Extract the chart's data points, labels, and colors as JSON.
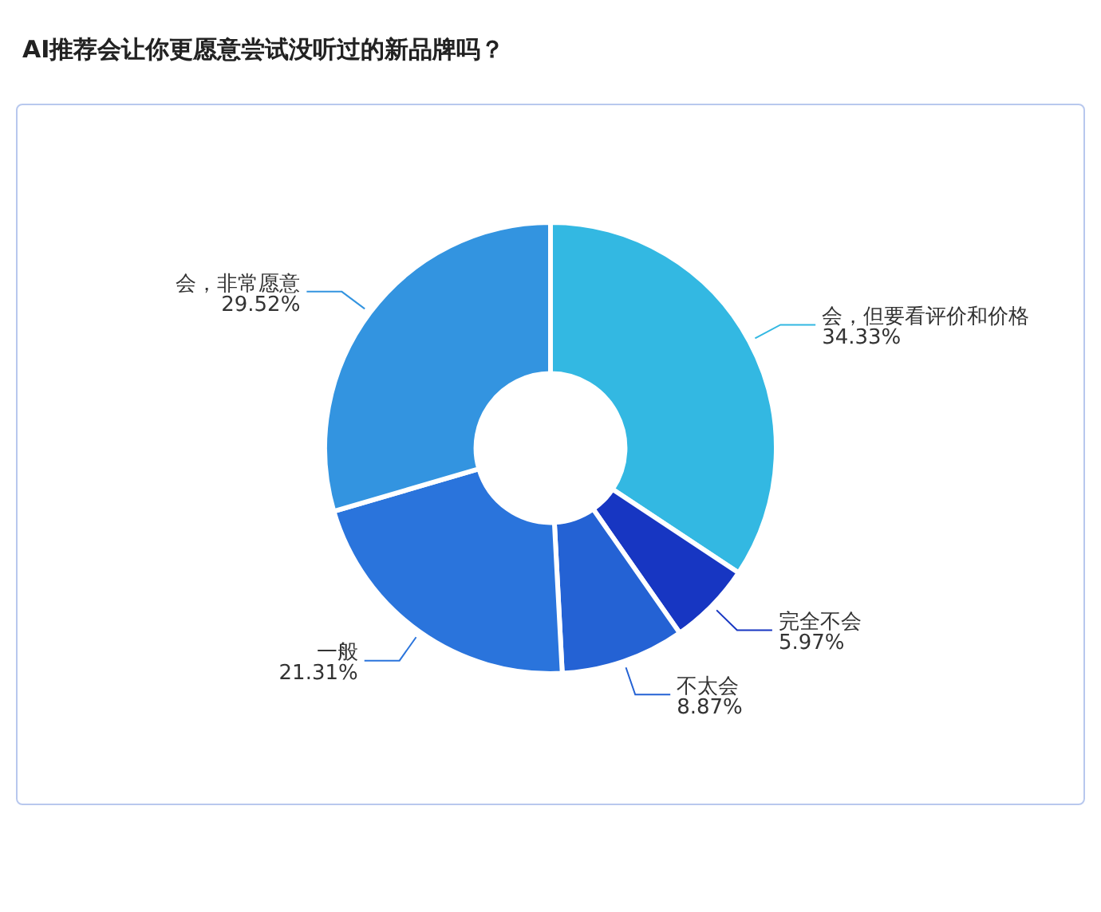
{
  "chart_data": {
    "type": "donut",
    "title": "AI推荐会让你更愿意尝试没听过的新品牌吗？",
    "categories": [
      "会，但要看评价和价格",
      "完全不会",
      "不太会",
      "一般",
      "会，非常愿意"
    ],
    "values": [
      34.33,
      5.97,
      8.87,
      21.31,
      29.52
    ],
    "value_labels": [
      "34.33%",
      "5.97%",
      "8.87%",
      "21.31%",
      "29.52%"
    ],
    "colors": [
      "#33b8e2",
      "#1736c2",
      "#2462d4",
      "#2a74dc",
      "#3394e0"
    ],
    "legend": false
  }
}
